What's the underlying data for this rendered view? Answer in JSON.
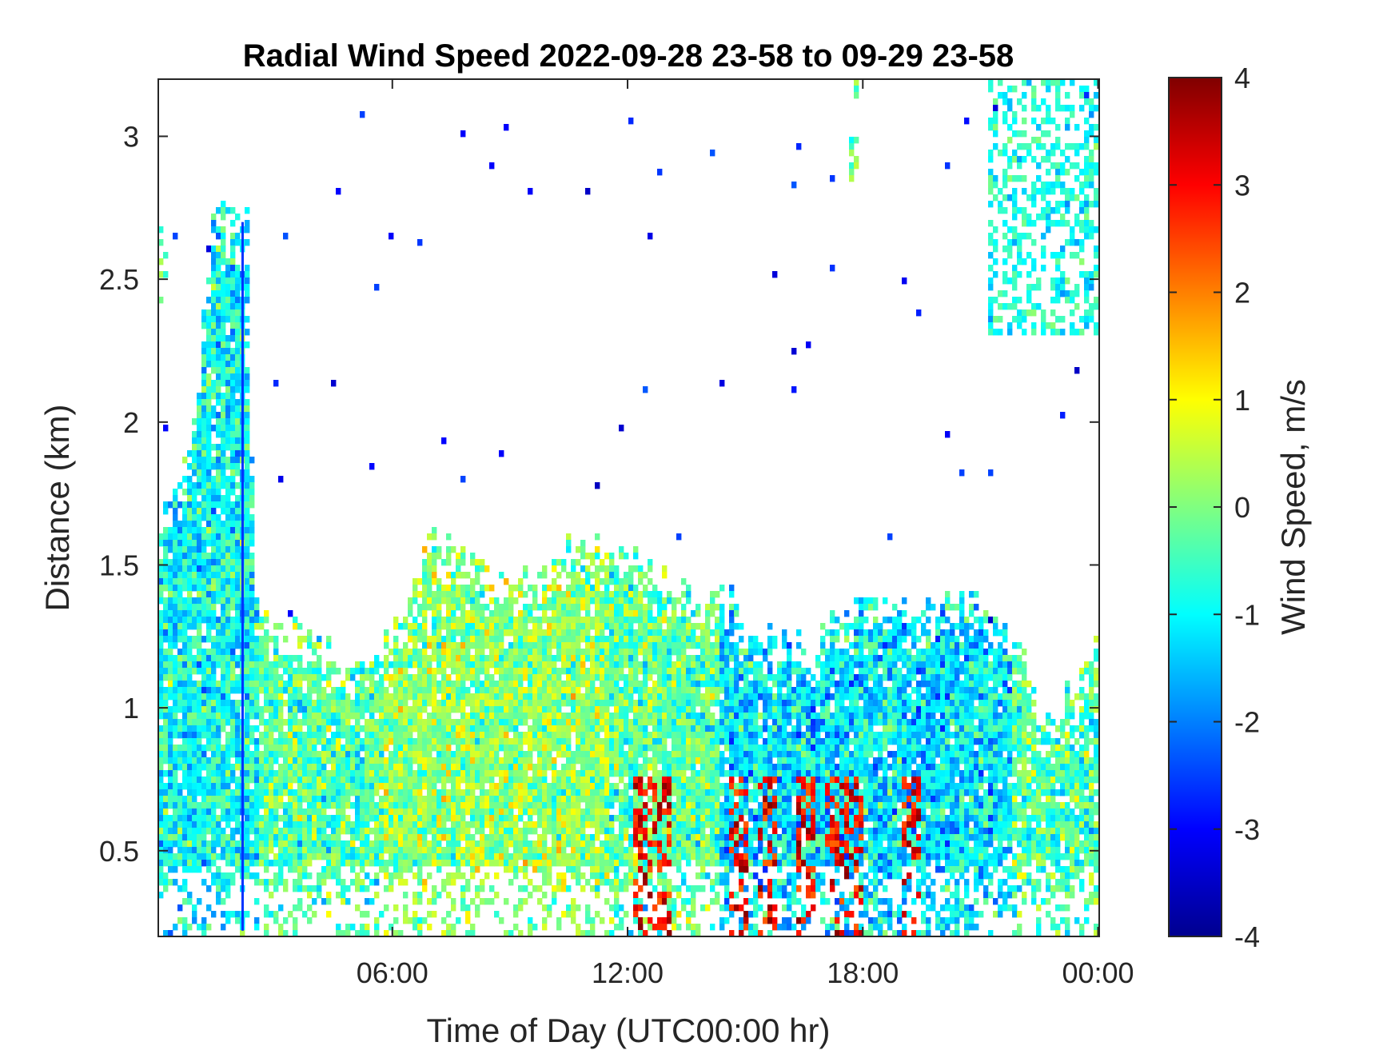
{
  "chart_data": {
    "type": "heatmap",
    "title": "Radial Wind Speed 2022-09-28 23-58 to 09-29 23-58",
    "xlabel": "Time of Day (UTC00:00 hr)",
    "ylabel": "Distance (km)",
    "colorbar_label": "Wind Speed, m/s",
    "x_range_hours": [
      0.03,
      24.03
    ],
    "y_range_km": [
      0.2,
      3.2
    ],
    "color_range": [
      -4,
      4
    ],
    "colormap": "jet",
    "x_ticks": [
      {
        "value": 6.0,
        "label": "06:00"
      },
      {
        "value": 12.0,
        "label": "12:00"
      },
      {
        "value": 18.0,
        "label": "18:00"
      },
      {
        "value": 24.0,
        "label": "00:00"
      }
    ],
    "y_ticks": [
      {
        "value": 0.5,
        "label": "0.5"
      },
      {
        "value": 1.0,
        "label": "1"
      },
      {
        "value": 1.5,
        "label": "1.5"
      },
      {
        "value": 2.0,
        "label": "2"
      },
      {
        "value": 2.5,
        "label": "2.5"
      },
      {
        "value": 3.0,
        "label": "3"
      }
    ],
    "color_ticks": [
      {
        "value": 4,
        "label": "4"
      },
      {
        "value": 3,
        "label": "3"
      },
      {
        "value": 2,
        "label": "2"
      },
      {
        "value": 1,
        "label": "1"
      },
      {
        "value": 0,
        "label": "0"
      },
      {
        "value": -1,
        "label": "-1"
      },
      {
        "value": -2,
        "label": "-2"
      },
      {
        "value": -3,
        "label": "-3"
      },
      {
        "value": -4,
        "label": "-4"
      }
    ],
    "data_top_profile_km": [
      {
        "hour": 0.03,
        "top": 1.65
      },
      {
        "hour": 0.5,
        "top": 1.8
      },
      {
        "hour": 1.0,
        "top": 2.0
      },
      {
        "hour": 1.4,
        "top": 2.7
      },
      {
        "hour": 2.0,
        "top": 2.75
      },
      {
        "hour": 2.4,
        "top": 1.95
      },
      {
        "hour": 2.6,
        "top": 1.3
      },
      {
        "hour": 3.5,
        "top": 1.3
      },
      {
        "hour": 4.5,
        "top": 1.2
      },
      {
        "hour": 5.5,
        "top": 1.15
      },
      {
        "hour": 6.5,
        "top": 1.45
      },
      {
        "hour": 7.0,
        "top": 1.6
      },
      {
        "hour": 8.0,
        "top": 1.55
      },
      {
        "hour": 8.5,
        "top": 1.45
      },
      {
        "hour": 9.5,
        "top": 1.45
      },
      {
        "hour": 10.5,
        "top": 1.55
      },
      {
        "hour": 11.5,
        "top": 1.58
      },
      {
        "hour": 12.5,
        "top": 1.5
      },
      {
        "hour": 13.5,
        "top": 1.42
      },
      {
        "hour": 14.5,
        "top": 1.4
      },
      {
        "hour": 15.5,
        "top": 1.3
      },
      {
        "hour": 16.2,
        "top": 1.2
      },
      {
        "hour": 17.0,
        "top": 1.28
      },
      {
        "hour": 18.0,
        "top": 1.33
      },
      {
        "hour": 19.0,
        "top": 1.36
      },
      {
        "hour": 20.0,
        "top": 1.4
      },
      {
        "hour": 21.0,
        "top": 1.38
      },
      {
        "hour": 22.0,
        "top": 1.22
      },
      {
        "hour": 22.5,
        "top": 0.95
      },
      {
        "hour": 23.0,
        "top": 1.0
      },
      {
        "hour": 23.5,
        "top": 1.1
      },
      {
        "hour": 24.03,
        "top": 1.25
      }
    ],
    "upper_cloud_patches": [
      {
        "hours": [
          21.2,
          24.03
        ],
        "km": [
          2.3,
          3.2
        ],
        "mean_speed": -0.8
      },
      {
        "hours": [
          17.6,
          17.9
        ],
        "km": [
          2.85,
          3.2
        ],
        "mean_speed": 0.0
      },
      {
        "hours": [
          0.03,
          0.25
        ],
        "km": [
          2.4,
          2.7
        ],
        "mean_speed": -0.2
      },
      {
        "hours": [
          1.4,
          2.3
        ],
        "km": [
          1.9,
          2.75
        ],
        "mean_speed": -1.2
      }
    ],
    "strong_positive_streaks_hours": [
      12.4,
      12.9,
      14.8,
      15.6,
      16.5,
      17.3,
      17.8,
      19.2
    ]
  }
}
